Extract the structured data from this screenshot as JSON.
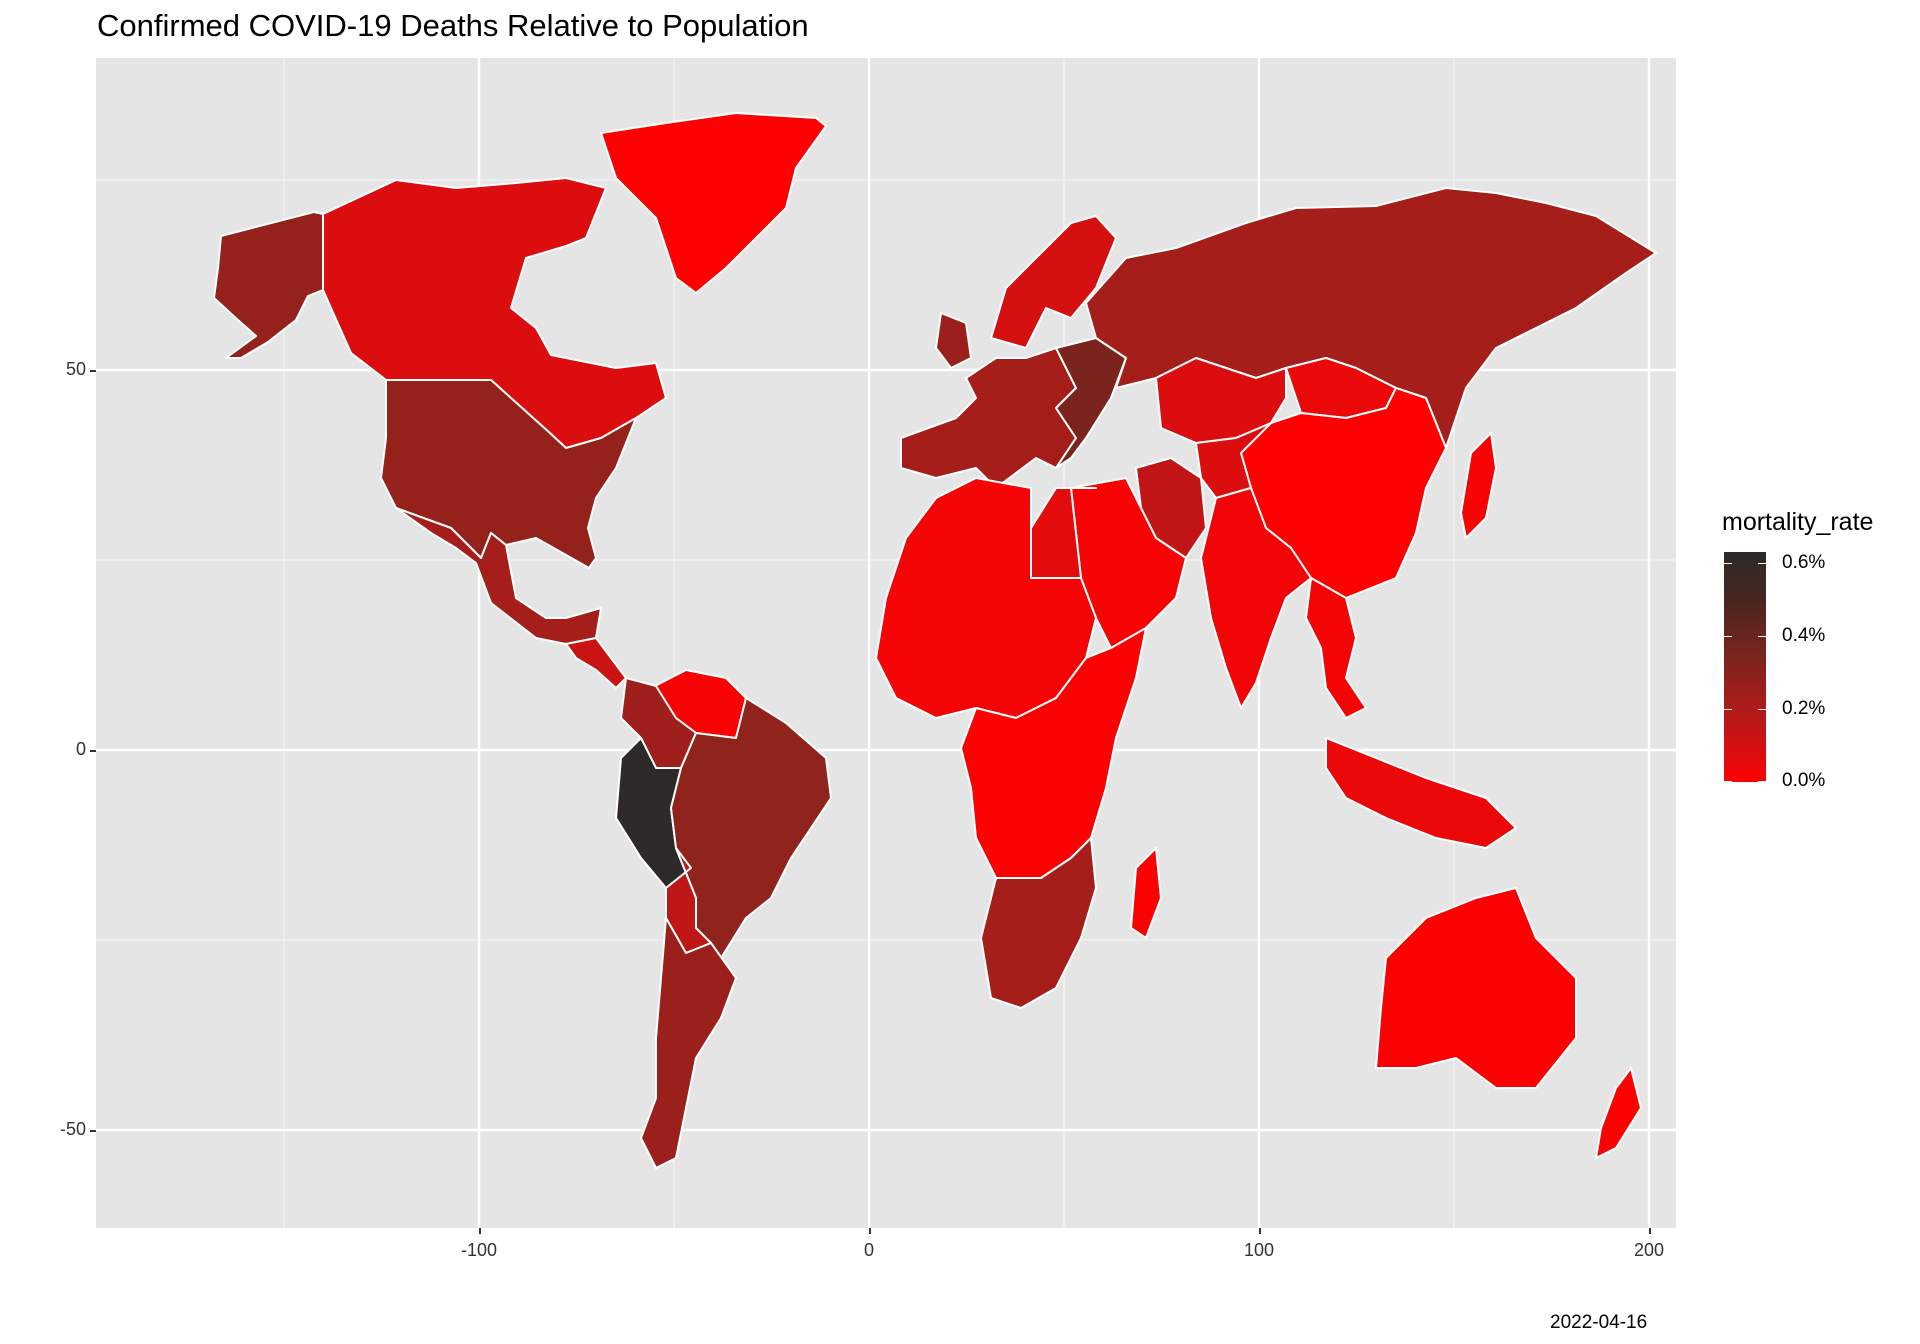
{
  "title": "Confirmed COVID-19 Deaths Relative to Population",
  "caption": "2022-04-16",
  "axes": {
    "x_ticks": [
      "-100",
      "0",
      "100",
      "200"
    ],
    "y_ticks": [
      "50",
      "0",
      "-50"
    ],
    "x_range": [
      -197,
      208
    ],
    "y_range": [
      -62,
      90
    ]
  },
  "legend": {
    "title": "mortality_rate",
    "labels": [
      "0.6%",
      "0.4%",
      "0.2%",
      "0.0%"
    ],
    "colors": {
      "low": "#ff0000",
      "mid": "#8b241c",
      "high": "#2b2a2a",
      "border": "#ffffff",
      "background": "#e5e5e5"
    }
  },
  "chart_data": {
    "type": "choropleth",
    "variable": "mortality_rate",
    "scale": [
      0.0,
      0.65
    ],
    "regions": [
      {
        "name": "Alaska",
        "rate": 0.3
      },
      {
        "name": "Canada",
        "rate": 0.1
      },
      {
        "name": "United States",
        "rate": 0.3
      },
      {
        "name": "Mexico",
        "rate": 0.25
      },
      {
        "name": "Greenland",
        "rate": 0.0
      },
      {
        "name": "Peru",
        "rate": 0.64
      },
      {
        "name": "Brazil",
        "rate": 0.31
      },
      {
        "name": "Argentina",
        "rate": 0.28
      },
      {
        "name": "Colombia",
        "rate": 0.27
      },
      {
        "name": "Venezuela",
        "rate": 0.02
      },
      {
        "name": "Bolivia",
        "rate": 0.18
      },
      {
        "name": "Russia",
        "rate": 0.25
      },
      {
        "name": "Western Europe",
        "rate": 0.25
      },
      {
        "name": "Eastern Europe",
        "rate": 0.38
      },
      {
        "name": "Kazakhstan",
        "rate": 0.1
      },
      {
        "name": "China",
        "rate": 0.0
      },
      {
        "name": "Mongolia",
        "rate": 0.06
      },
      {
        "name": "India",
        "rate": 0.04
      },
      {
        "name": "Iran",
        "rate": 0.17
      },
      {
        "name": "Arabian Peninsula",
        "rate": 0.02
      },
      {
        "name": "Southeast Asia",
        "rate": 0.03
      },
      {
        "name": "Indonesia",
        "rate": 0.06
      },
      {
        "name": "Japan",
        "rate": 0.02
      },
      {
        "name": "North Africa",
        "rate": 0.03
      },
      {
        "name": "Egypt",
        "rate": 0.08
      },
      {
        "name": "Central Africa",
        "rate": 0.01
      },
      {
        "name": "Southern Africa",
        "rate": 0.25
      },
      {
        "name": "Madagascar",
        "rate": 0.01
      },
      {
        "name": "Australia",
        "rate": 0.01
      },
      {
        "name": "New Zealand",
        "rate": 0.01
      }
    ]
  }
}
